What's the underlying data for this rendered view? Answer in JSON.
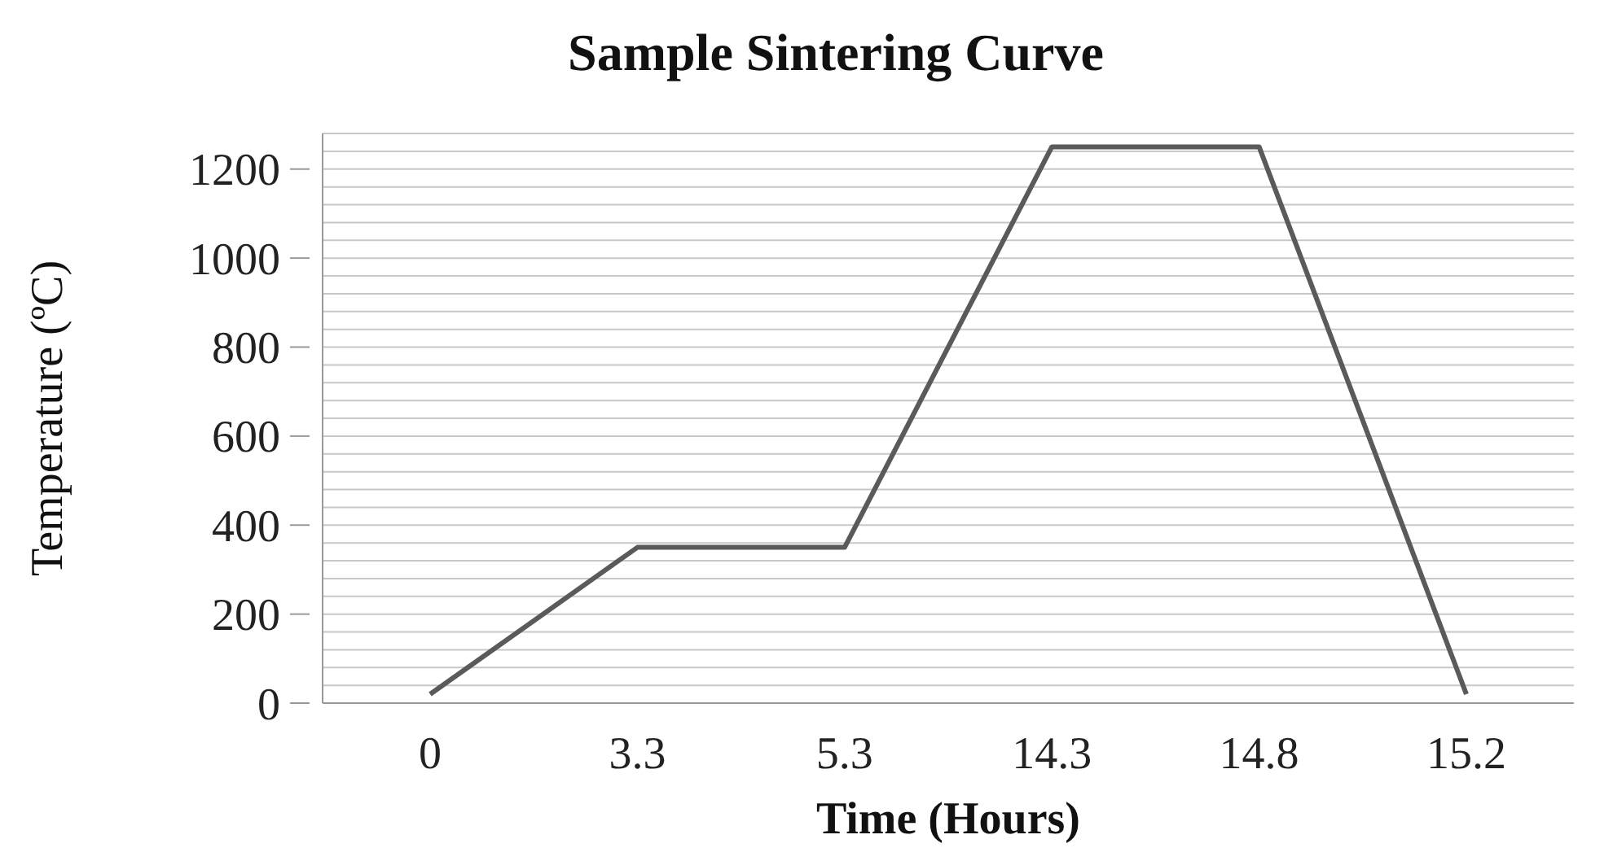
{
  "chart_data": {
    "type": "line",
    "title": "Sample Sintering Curve",
    "xlabel": "Time (Hours)",
    "ylabel": "Temperature (ºC)",
    "categories": [
      "0",
      "3.3",
      "5.3",
      "14.3",
      "14.8",
      "15.2"
    ],
    "series": [
      {
        "color": "#5a5a5a",
        "values": [
          20,
          350,
          350,
          1250,
          1250,
          20
        ]
      }
    ],
    "ylim": [
      0,
      1280
    ],
    "yticks": [
      0,
      {
        "value": 40,
        "label": null
      },
      {
        "value": 80,
        "label": null
      },
      {
        "value": 120,
        "label": null
      },
      {
        "value": 160,
        "label": null
      },
      200,
      {
        "value": 240,
        "label": null
      },
      {
        "value": 280,
        "label": null
      },
      {
        "value": 320,
        "label": null
      },
      {
        "value": 360,
        "label": null
      },
      400,
      {
        "value": 440,
        "label": null
      },
      {
        "value": 480,
        "label": null
      },
      {
        "value": 520,
        "label": null
      },
      {
        "value": 560,
        "label": null
      },
      600,
      {
        "value": 640,
        "label": null
      },
      {
        "value": 680,
        "label": null
      },
      {
        "value": 720,
        "label": null
      },
      {
        "value": 760,
        "label": null
      },
      800,
      {
        "value": 840,
        "label": null
      },
      {
        "value": 880,
        "label": null
      },
      {
        "value": 920,
        "label": null
      },
      {
        "value": 960,
        "label": null
      },
      1000,
      {
        "value": 1040,
        "label": null
      },
      {
        "value": 1080,
        "label": null
      },
      {
        "value": 1120,
        "label": null
      },
      {
        "value": 1160,
        "label": null
      },
      1200,
      {
        "value": 1240,
        "label": null
      },
      {
        "value": 1280,
        "label": null
      }
    ],
    "grid": "y",
    "marker": "none",
    "line_style": "solid"
  }
}
